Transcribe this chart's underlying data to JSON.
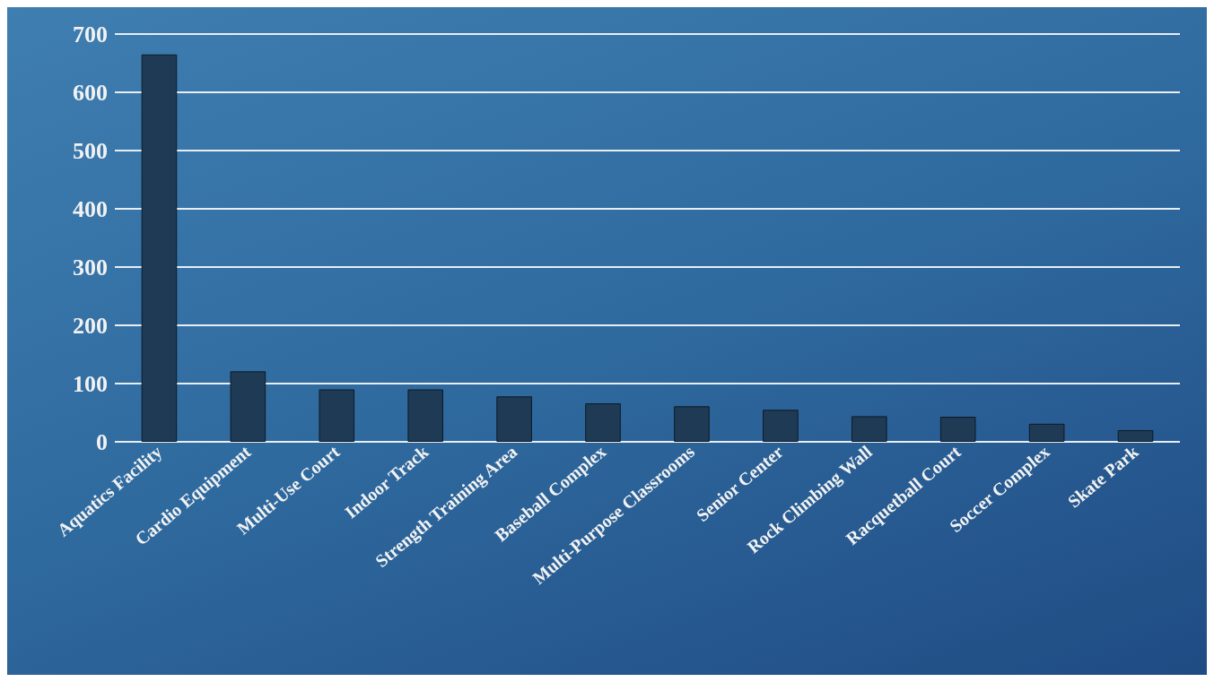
{
  "chart_data": {
    "type": "bar",
    "categories": [
      "Aquatics Facility",
      "Cardio Equipment",
      "Multi-Use Court",
      "Indoor Track",
      "Strength Training Area",
      "Baseball Complex",
      "Multi-Purpose Classrooms",
      "Senior Center",
      "Rock Climbing Wall",
      "Racquetball Court",
      "Soccer Complex",
      "Skate Park"
    ],
    "values": [
      665,
      121,
      90,
      90,
      78,
      66,
      61,
      55,
      44,
      43,
      31,
      20
    ],
    "color": "#1f3a55",
    "ylim": [
      0,
      700
    ],
    "yticks": [
      0,
      100,
      200,
      300,
      400,
      500,
      600,
      700
    ],
    "grid": "y"
  }
}
